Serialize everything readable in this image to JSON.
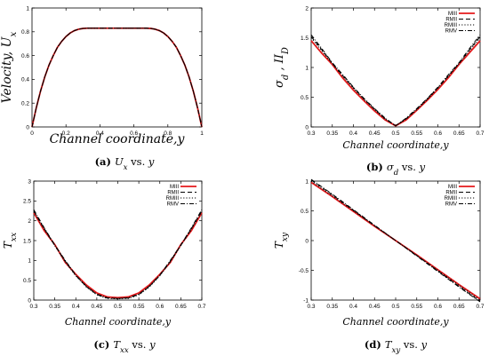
{
  "chart_data": [
    {
      "type": "line",
      "panel": "a",
      "caption": {
        "tag": "(a)",
        "text": "U_x vs. y"
      },
      "xlabel": "Channel coordinate,y",
      "ylabel": "Velocity, U_x",
      "xlim": [
        0,
        1
      ],
      "ylim": [
        0,
        1
      ],
      "xticks": [
        0,
        0.2,
        0.4,
        0.6,
        0.8,
        1
      ],
      "xtick_labels": [
        "0",
        "0.2",
        "0.4",
        "0.6",
        "0.8",
        "1"
      ],
      "yticks": [
        0,
        0.2,
        0.4,
        0.6,
        0.8,
        1
      ],
      "ytick_labels": [
        "0",
        "0.2",
        "0.4",
        "0.6",
        "0.8",
        "1"
      ],
      "grid": false,
      "legend_position": "none",
      "x": [
        0,
        0.025,
        0.05,
        0.075,
        0.1,
        0.125,
        0.15,
        0.175,
        0.2,
        0.225,
        0.25,
        0.275,
        0.3,
        0.325,
        0.35,
        0.4,
        0.5,
        0.6,
        0.65,
        0.675,
        0.7,
        0.725,
        0.75,
        0.775,
        0.8,
        0.825,
        0.85,
        0.875,
        0.9,
        0.925,
        0.95,
        0.975,
        1
      ],
      "series": [
        {
          "name": "MIII",
          "color": "#e41a1c",
          "dash": "solid",
          "values": [
            0,
            0.16,
            0.3,
            0.42,
            0.52,
            0.6,
            0.67,
            0.72,
            0.76,
            0.79,
            0.81,
            0.822,
            0.828,
            0.83,
            0.83,
            0.83,
            0.83,
            0.83,
            0.83,
            0.83,
            0.828,
            0.822,
            0.81,
            0.79,
            0.76,
            0.72,
            0.67,
            0.6,
            0.52,
            0.42,
            0.3,
            0.16,
            0
          ]
        },
        {
          "name": "RMII",
          "color": "#000000",
          "dash": "dashed",
          "values": [
            0,
            0.16,
            0.3,
            0.42,
            0.52,
            0.6,
            0.67,
            0.72,
            0.76,
            0.79,
            0.81,
            0.822,
            0.828,
            0.83,
            0.83,
            0.83,
            0.83,
            0.83,
            0.83,
            0.83,
            0.828,
            0.822,
            0.81,
            0.79,
            0.76,
            0.72,
            0.67,
            0.6,
            0.52,
            0.42,
            0.3,
            0.16,
            0
          ]
        },
        {
          "name": "RMIII",
          "color": "#000000",
          "dash": "dotted",
          "values": [
            0,
            0.16,
            0.3,
            0.42,
            0.52,
            0.6,
            0.67,
            0.72,
            0.76,
            0.79,
            0.81,
            0.822,
            0.828,
            0.83,
            0.83,
            0.83,
            0.83,
            0.83,
            0.83,
            0.83,
            0.828,
            0.822,
            0.81,
            0.79,
            0.76,
            0.72,
            0.67,
            0.6,
            0.52,
            0.42,
            0.3,
            0.16,
            0
          ]
        },
        {
          "name": "RMV",
          "color": "#000000",
          "dash": "dashdot",
          "values": [
            0,
            0.16,
            0.3,
            0.42,
            0.52,
            0.6,
            0.67,
            0.72,
            0.76,
            0.79,
            0.81,
            0.822,
            0.828,
            0.83,
            0.83,
            0.83,
            0.83,
            0.83,
            0.83,
            0.83,
            0.828,
            0.822,
            0.81,
            0.79,
            0.76,
            0.72,
            0.67,
            0.6,
            0.52,
            0.42,
            0.3,
            0.16,
            0
          ]
        }
      ]
    },
    {
      "type": "line",
      "panel": "b",
      "caption": {
        "tag": "(b)",
        "text": "σ_d vs. y"
      },
      "xlabel": "Channel coordinate,y",
      "ylabel": "σ_d , II_D",
      "xlim": [
        0.3,
        0.7
      ],
      "ylim": [
        0,
        2
      ],
      "xticks": [
        0.3,
        0.35,
        0.4,
        0.45,
        0.5,
        0.55,
        0.6,
        0.65,
        0.7
      ],
      "xtick_labels": [
        "0.3",
        "0.35",
        "0.4",
        "0.45",
        "0.5",
        "0.55",
        "0.6",
        "0.65",
        "0.7"
      ],
      "yticks": [
        0,
        0.5,
        1,
        1.5,
        2
      ],
      "ytick_labels": [
        "0",
        "0.5",
        "1",
        "1.5",
        "2"
      ],
      "grid": false,
      "legend_position": "top-right",
      "x": [
        0.3,
        0.325,
        0.35,
        0.375,
        0.4,
        0.425,
        0.45,
        0.475,
        0.5,
        0.525,
        0.55,
        0.575,
        0.6,
        0.625,
        0.65,
        0.675,
        0.7
      ],
      "series": [
        {
          "name": "MIII",
          "color": "#e41a1c",
          "dash": "solid",
          "values": [
            1.45,
            1.24,
            1.05,
            0.82,
            0.62,
            0.44,
            0.27,
            0.12,
            0.02,
            0.12,
            0.28,
            0.45,
            0.63,
            0.83,
            1.05,
            1.25,
            1.45
          ]
        },
        {
          "name": "RMII",
          "color": "#000000",
          "dash": "dashed",
          "values": [
            1.52,
            1.3,
            1.07,
            0.86,
            0.66,
            0.47,
            0.3,
            0.14,
            0.02,
            0.14,
            0.3,
            0.47,
            0.66,
            0.86,
            1.07,
            1.3,
            1.52
          ]
        },
        {
          "name": "RMIII",
          "color": "#000000",
          "dash": "dotted",
          "values": [
            1.5,
            1.28,
            1.06,
            0.85,
            0.65,
            0.46,
            0.29,
            0.13,
            0.02,
            0.13,
            0.29,
            0.46,
            0.65,
            0.85,
            1.06,
            1.28,
            1.5
          ]
        },
        {
          "name": "RMV",
          "color": "#000000",
          "dash": "dashdot",
          "values": [
            1.55,
            1.32,
            1.08,
            0.88,
            0.67,
            0.48,
            0.31,
            0.15,
            0.02,
            0.15,
            0.31,
            0.48,
            0.67,
            0.88,
            1.08,
            1.32,
            1.55
          ]
        }
      ]
    },
    {
      "type": "line",
      "panel": "c",
      "caption": {
        "tag": "(c)",
        "text": "T_xx vs. y"
      },
      "xlabel": "Channel coordinate,y",
      "ylabel": "T_xx",
      "xlim": [
        0.3,
        0.7
      ],
      "ylim": [
        0,
        3
      ],
      "xticks": [
        0.3,
        0.35,
        0.4,
        0.45,
        0.5,
        0.55,
        0.6,
        0.65,
        0.7
      ],
      "xtick_labels": [
        "0.3",
        "0.35",
        "0.4",
        "0.45",
        "0.5",
        "0.55",
        "0.6",
        "0.65",
        "0.7"
      ],
      "yticks": [
        0,
        0.5,
        1,
        1.5,
        2,
        2.5,
        3
      ],
      "ytick_labels": [
        "0",
        "0.5",
        "1",
        "1.5",
        "2",
        "2.5",
        "3"
      ],
      "grid": false,
      "legend_position": "top-right",
      "x": [
        0.3,
        0.325,
        0.35,
        0.375,
        0.4,
        0.425,
        0.45,
        0.475,
        0.5,
        0.525,
        0.55,
        0.575,
        0.6,
        0.625,
        0.65,
        0.675,
        0.7
      ],
      "series": [
        {
          "name": "MIII",
          "color": "#e41a1c",
          "dash": "solid",
          "values": [
            2.2,
            1.75,
            1.4,
            0.95,
            0.65,
            0.38,
            0.18,
            0.08,
            0.06,
            0.08,
            0.18,
            0.38,
            0.65,
            0.95,
            1.4,
            1.75,
            2.2
          ]
        },
        {
          "name": "RMII",
          "color": "#000000",
          "dash": "dashed",
          "values": [
            2.25,
            1.8,
            1.38,
            0.98,
            0.62,
            0.34,
            0.14,
            0.05,
            0.04,
            0.05,
            0.14,
            0.34,
            0.62,
            0.98,
            1.38,
            1.8,
            2.25
          ]
        },
        {
          "name": "RMIII",
          "color": "#000000",
          "dash": "dotted",
          "values": [
            2.22,
            1.78,
            1.37,
            0.96,
            0.61,
            0.33,
            0.13,
            0.04,
            0.03,
            0.04,
            0.13,
            0.33,
            0.61,
            0.96,
            1.37,
            1.78,
            2.22
          ]
        },
        {
          "name": "RMV",
          "color": "#000000",
          "dash": "dashdot",
          "values": [
            2.28,
            1.82,
            1.39,
            1.0,
            0.63,
            0.35,
            0.15,
            0.06,
            0.04,
            0.06,
            0.15,
            0.35,
            0.63,
            1.0,
            1.39,
            1.82,
            2.28
          ]
        }
      ]
    },
    {
      "type": "line",
      "panel": "d",
      "caption": {
        "tag": "(d)",
        "text": "T_xy vs. y"
      },
      "xlabel": "Channel coordinate,y",
      "ylabel": "T_xy",
      "xlim": [
        0.3,
        0.7
      ],
      "ylim": [
        -1,
        1
      ],
      "xticks": [
        0.3,
        0.35,
        0.4,
        0.45,
        0.5,
        0.55,
        0.6,
        0.65,
        0.7
      ],
      "xtick_labels": [
        "0.3",
        "0.35",
        "0.4",
        "0.45",
        "0.5",
        "0.55",
        "0.6",
        "0.65",
        "0.7"
      ],
      "yticks": [
        -1,
        -0.5,
        0,
        0.5,
        1
      ],
      "ytick_labels": [
        "-1",
        "-0.5",
        "0",
        "0.5",
        "1"
      ],
      "grid": false,
      "legend_position": "top-right",
      "x": [
        0.3,
        0.35,
        0.4,
        0.45,
        0.5,
        0.55,
        0.6,
        0.65,
        0.7
      ],
      "series": [
        {
          "name": "MIII",
          "color": "#e41a1c",
          "dash": "solid",
          "values": [
            0.98,
            0.74,
            0.49,
            0.24,
            0.0,
            -0.24,
            -0.49,
            -0.74,
            -0.98
          ]
        },
        {
          "name": "RMII",
          "color": "#000000",
          "dash": "dashed",
          "values": [
            1.02,
            0.77,
            0.51,
            0.25,
            0.0,
            -0.25,
            -0.51,
            -0.77,
            -1.02
          ]
        },
        {
          "name": "RMIII",
          "color": "#000000",
          "dash": "dotted",
          "values": [
            1.0,
            0.75,
            0.5,
            0.25,
            0.0,
            -0.25,
            -0.5,
            -0.75,
            -1.0
          ]
        },
        {
          "name": "RMV",
          "color": "#000000",
          "dash": "dashdot",
          "values": [
            1.03,
            0.78,
            0.52,
            0.26,
            0.0,
            -0.26,
            -0.52,
            -0.78,
            -1.03
          ]
        }
      ]
    }
  ]
}
